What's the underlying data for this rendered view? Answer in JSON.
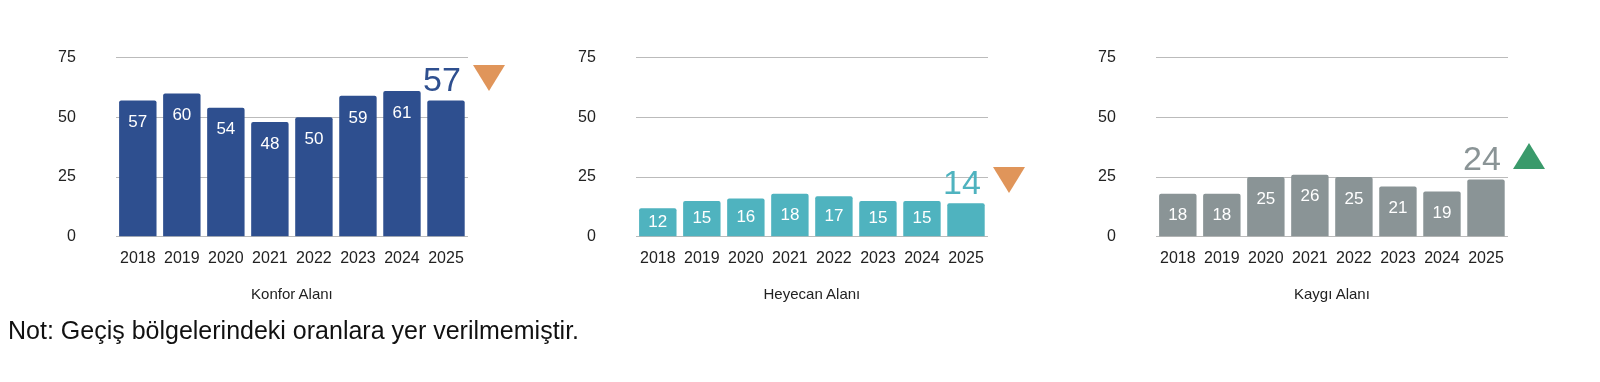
{
  "chart_data": [
    {
      "type": "bar",
      "xlabel": "Konfor Alanı",
      "categories": [
        "2018",
        "2019",
        "2020",
        "2021",
        "2022",
        "2023",
        "2024",
        "2025"
      ],
      "values": [
        57,
        60,
        54,
        48,
        50,
        59,
        61,
        57
      ],
      "color": "#2e4f8f",
      "value_labels": [
        "57",
        "60",
        "54",
        "48",
        "50",
        "59",
        "61",
        "57"
      ],
      "ylim": [
        0,
        75
      ],
      "yticks": [
        0,
        25,
        50,
        75
      ],
      "grid": "y",
      "legend": false,
      "annotations": [
        "Not: Geçiş bölgelerindeki oranlara yer verilmemiştir."
      ]
    },
    {
      "type": "bar",
      "xlabel": "Heyecan Alanı",
      "categories": [
        "2018",
        "2019",
        "2020",
        "2021",
        "2022",
        "2023",
        "2024",
        "2025"
      ],
      "values": [
        12,
        15,
        16,
        18,
        17,
        15,
        15,
        14
      ],
      "color": "#4fb3bf",
      "value_labels": [
        "12",
        "15",
        "16",
        "18",
        "17",
        "15",
        "15",
        "14"
      ],
      "ylim": [
        0,
        75
      ],
      "yticks": [
        0,
        25,
        50,
        75
      ],
      "grid": "y",
      "legend": false
    },
    {
      "type": "bar",
      "xlabel": "Kaygı Alanı",
      "categories": [
        "2018",
        "2019",
        "2020",
        "2021",
        "2022",
        "2023",
        "2024",
        "2025"
      ],
      "values": [
        18,
        18,
        25,
        26,
        25,
        21,
        19,
        24
      ],
      "color": "#8a9496",
      "value_labels": [
        "18",
        "18",
        "25",
        "26",
        "25",
        "21",
        "19",
        "24"
      ],
      "ylim": [
        0,
        75
      ],
      "yticks": [
        0,
        25,
        50,
        75
      ],
      "grid": "y",
      "legend": false
    }
  ]
}
